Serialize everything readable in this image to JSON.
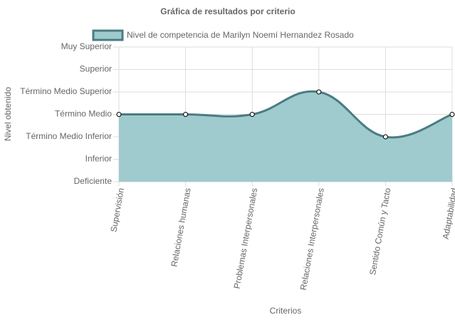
{
  "chart_data": {
    "type": "area",
    "title": "Gráfica de resultados por criterio",
    "x_label": "Criterios",
    "y_label": "Nivel obtenido",
    "categories": [
      "Supervisión",
      "Relaciones humanas",
      "Problemas Interpersonales",
      "Relaciones Interpersonales",
      "Sentido Común y Tacto",
      "Adaptabilidad"
    ],
    "series": [
      {
        "name": "Nivel de competencia de Marilyn Noemí Hernandez Rosado",
        "color": "#4a7c82",
        "fill": "#9fcbcf",
        "values": [
          4,
          4,
          4,
          5,
          3,
          4
        ]
      }
    ],
    "ylim": [
      1,
      7
    ],
    "yticks": [
      {
        "value": 1,
        "label": "Deficiente"
      },
      {
        "value": 2,
        "label": "Inferior"
      },
      {
        "value": 3,
        "label": "Término Medio Inferior"
      },
      {
        "value": 4,
        "label": "Término Medio"
      },
      {
        "value": 5,
        "label": "Término Medio Superior"
      },
      {
        "value": 6,
        "label": "Superior"
      },
      {
        "value": 7,
        "label": "Muy Superior"
      }
    ],
    "grid": true
  }
}
